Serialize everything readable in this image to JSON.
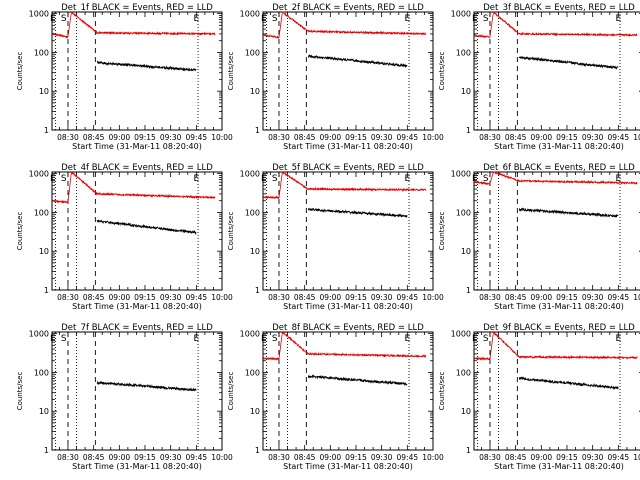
{
  "figure": {
    "xlabel": "Start Time (31-Mar-11 08:20:40)",
    "ylabel": "Counts/sec"
  },
  "chart_data": [
    {
      "type": "line",
      "title": "Det_1f BLACK = Events, RED = LLD",
      "xlabel": "Start Time (31-Mar-11 08:20:40)",
      "ylabel": "Counts/sec",
      "x_ticks": [
        "08:30",
        "08:45",
        "09:00",
        "09:15",
        "09:30",
        "09:45",
        "10:00"
      ],
      "y_ticks": [
        "1",
        "10",
        "100",
        "1000"
      ],
      "yscale": "log",
      "xlim": [
        "08:20:40",
        "10:00:00"
      ],
      "ylim": [
        1,
        1100
      ],
      "markers": [
        "E",
        "S",
        "E"
      ],
      "series": [
        {
          "name": "RED = LLD",
          "color": "#e00000",
          "x_range": [
            "08:21",
            "08:30",
            "08:32",
            "08:47",
            "09:56"
          ],
          "values": [
            300,
            250,
            1100,
            320,
            300
          ]
        },
        {
          "name": "BLACK = Events",
          "color": "#000000",
          "x_range": [
            "08:47",
            "09:45"
          ],
          "values": [
            55,
            35
          ]
        }
      ]
    },
    {
      "type": "line",
      "title": "Det_2f BLACK = Events, RED = LLD",
      "xlabel": "Start Time (31-Mar-11 08:20:40)",
      "ylabel": "Counts/sec",
      "x_ticks": [
        "08:30",
        "08:45",
        "09:00",
        "09:15",
        "09:30",
        "09:45",
        "10:00"
      ],
      "y_ticks": [
        "1",
        "10",
        "100",
        "1000"
      ],
      "yscale": "log",
      "xlim": [
        "08:20:40",
        "10:00:00"
      ],
      "ylim": [
        1,
        1100
      ],
      "markers": [
        "E",
        "S",
        "E"
      ],
      "series": [
        {
          "name": "RED = LLD",
          "color": "#e00000",
          "x_range": [
            "08:21",
            "08:30",
            "08:32",
            "08:47",
            "09:56"
          ],
          "values": [
            280,
            240,
            1100,
            350,
            300
          ]
        },
        {
          "name": "BLACK = Events",
          "color": "#000000",
          "x_range": [
            "08:47",
            "09:45"
          ],
          "values": [
            80,
            45
          ]
        }
      ]
    },
    {
      "type": "line",
      "title": "Det_3f BLACK = Events, RED = LLD",
      "xlabel": "Start Time (31-Mar-11 08:20:40)",
      "ylabel": "Counts/sec",
      "x_ticks": [
        "08:30",
        "08:45",
        "09:00",
        "09:15",
        "09:30",
        "09:45",
        "10:00"
      ],
      "y_ticks": [
        "1",
        "10",
        "100",
        "1000"
      ],
      "yscale": "log",
      "xlim": [
        "08:20:40",
        "10:00:00"
      ],
      "ylim": [
        1,
        1100
      ],
      "markers": [
        "E",
        "S",
        "E"
      ],
      "series": [
        {
          "name": "RED = LLD",
          "color": "#e00000",
          "x_range": [
            "08:21",
            "08:30",
            "08:32",
            "08:47",
            "09:56"
          ],
          "values": [
            270,
            250,
            1100,
            300,
            280
          ]
        },
        {
          "name": "BLACK = Events",
          "color": "#000000",
          "x_range": [
            "08:47",
            "09:45"
          ],
          "values": [
            75,
            40
          ]
        }
      ]
    },
    {
      "type": "line",
      "title": "Det_4f BLACK = Events, RED = LLD",
      "xlabel": "Start Time (31-Mar-11 08:20:40)",
      "ylabel": "Counts/sec",
      "x_ticks": [
        "08:30",
        "08:45",
        "09:00",
        "09:15",
        "09:30",
        "09:45",
        "10:00"
      ],
      "y_ticks": [
        "1",
        "10",
        "100",
        "1000"
      ],
      "yscale": "log",
      "xlim": [
        "08:20:40",
        "10:00:00"
      ],
      "ylim": [
        1,
        1100
      ],
      "markers": [
        "E",
        "S",
        "E"
      ],
      "series": [
        {
          "name": "RED = LLD",
          "color": "#e00000",
          "x_range": [
            "08:21",
            "08:30",
            "08:32",
            "08:47",
            "09:56"
          ],
          "values": [
            200,
            180,
            1100,
            300,
            240
          ]
        },
        {
          "name": "BLACK = Events",
          "color": "#000000",
          "x_range": [
            "08:47",
            "09:45"
          ],
          "values": [
            60,
            30
          ]
        }
      ]
    },
    {
      "type": "line",
      "title": "Det_5f BLACK = Events, RED = LLD",
      "xlabel": "Start Time (31-Mar-11 08:20:40)",
      "ylabel": "Counts/sec",
      "x_ticks": [
        "08:30",
        "08:45",
        "09:00",
        "09:15",
        "09:30",
        "09:45",
        "10:00"
      ],
      "y_ticks": [
        "1",
        "10",
        "100",
        "1000"
      ],
      "yscale": "log",
      "xlim": [
        "08:20:40",
        "10:00:00"
      ],
      "ylim": [
        1,
        1100
      ],
      "markers": [
        "E",
        "S",
        "E"
      ],
      "series": [
        {
          "name": "RED = LLD",
          "color": "#e00000",
          "x_range": [
            "08:21",
            "08:30",
            "08:32",
            "08:47",
            "09:56"
          ],
          "values": [
            250,
            240,
            1100,
            400,
            380
          ]
        },
        {
          "name": "BLACK = Events",
          "color": "#000000",
          "x_range": [
            "08:47",
            "09:45"
          ],
          "values": [
            120,
            80
          ]
        }
      ]
    },
    {
      "type": "line",
      "title": "Det_6f BLACK = Events, RED = LLD",
      "xlabel": "Start Time (31-Mar-11 08:20:40)",
      "ylabel": "Counts/sec",
      "x_ticks": [
        "08:30",
        "08:45",
        "09:00",
        "09:15",
        "09:30",
        "09:45",
        "10:00"
      ],
      "y_ticks": [
        "1",
        "10",
        "100",
        "1000"
      ],
      "yscale": "log",
      "xlim": [
        "08:20:40",
        "10:00:00"
      ],
      "ylim": [
        1,
        1100
      ],
      "markers": [
        "E",
        "S",
        "E"
      ],
      "series": [
        {
          "name": "RED = LLD",
          "color": "#e00000",
          "x_range": [
            "08:21",
            "08:30",
            "08:32",
            "08:47",
            "09:56"
          ],
          "values": [
            600,
            550,
            1100,
            650,
            570
          ]
        },
        {
          "name": "BLACK = Events",
          "color": "#000000",
          "x_range": [
            "08:47",
            "09:45"
          ],
          "values": [
            120,
            80
          ]
        }
      ]
    },
    {
      "type": "line",
      "title": "Det_7f BLACK = Events, RED = LLD",
      "xlabel": "Start Time (31-Mar-11 08:20:40)",
      "ylabel": "Counts/sec",
      "x_ticks": [
        "08:30",
        "08:45",
        "09:00",
        "09:15",
        "09:30",
        "09:45",
        "10:00"
      ],
      "y_ticks": [
        "1",
        "10",
        "100",
        "1000"
      ],
      "yscale": "log",
      "xlim": [
        "08:20:40",
        "10:00:00"
      ],
      "ylim": [
        1,
        1100
      ],
      "markers": [
        "E",
        "S",
        "E"
      ],
      "series": [
        {
          "name": "BLACK = Events",
          "color": "#000000",
          "x_range": [
            "08:47",
            "09:45"
          ],
          "values": [
            55,
            35
          ]
        }
      ]
    },
    {
      "type": "line",
      "title": "Det_8f BLACK = Events, RED = LLD",
      "xlabel": "Start Time (31-Mar-11 08:20:40)",
      "ylabel": "Counts/sec",
      "x_ticks": [
        "08:30",
        "08:45",
        "09:00",
        "09:15",
        "09:30",
        "09:45",
        "10:00"
      ],
      "y_ticks": [
        "1",
        "10",
        "100",
        "1000"
      ],
      "yscale": "log",
      "xlim": [
        "08:20:40",
        "10:00:00"
      ],
      "ylim": [
        1,
        1100
      ],
      "markers": [
        "E",
        "S",
        "E"
      ],
      "series": [
        {
          "name": "RED = LLD",
          "color": "#e00000",
          "x_range": [
            "08:21",
            "08:30",
            "08:32",
            "08:47",
            "09:56"
          ],
          "values": [
            230,
            220,
            1100,
            300,
            260
          ]
        },
        {
          "name": "BLACK = Events",
          "color": "#000000",
          "x_range": [
            "08:47",
            "09:45"
          ],
          "values": [
            80,
            50
          ]
        }
      ]
    },
    {
      "type": "line",
      "title": "Det_9f BLACK = Events, RED = LLD",
      "xlabel": "Start Time (31-Mar-11 08:20:40)",
      "ylabel": "Counts/sec",
      "x_ticks": [
        "08:30",
        "08:45",
        "09:00",
        "09:15",
        "09:30",
        "09:45",
        "10:00"
      ],
      "y_ticks": [
        "1",
        "10",
        "100",
        "1000"
      ],
      "yscale": "log",
      "xlim": [
        "08:20:40",
        "10:00:00"
      ],
      "ylim": [
        1,
        1100
      ],
      "markers": [
        "E",
        "S",
        "E"
      ],
      "series": [
        {
          "name": "RED = LLD",
          "color": "#e00000",
          "x_range": [
            "08:21",
            "08:30",
            "08:32",
            "08:47",
            "09:56"
          ],
          "values": [
            230,
            220,
            1100,
            250,
            240
          ]
        },
        {
          "name": "BLACK = Events",
          "color": "#000000",
          "x_range": [
            "08:47",
            "09:45"
          ],
          "values": [
            70,
            40
          ]
        }
      ]
    }
  ]
}
